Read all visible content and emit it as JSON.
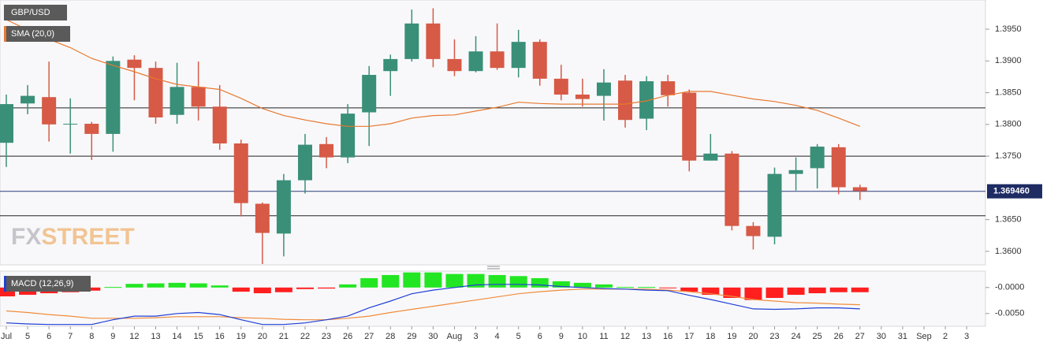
{
  "chart_data": [
    {
      "type": "candlestick",
      "title": "GBP/USD",
      "categories": [
        "Jul",
        "5",
        "6",
        "7",
        "8",
        "9",
        "12",
        "13",
        "14",
        "15",
        "16",
        "19",
        "20",
        "21",
        "22",
        "23",
        "26",
        "27",
        "28",
        "29",
        "30",
        "Aug",
        "3",
        "4",
        "5",
        "6",
        "9",
        "10",
        "11",
        "12",
        "13",
        "16",
        "17",
        "18",
        "19",
        "20",
        "23",
        "24",
        "25",
        "26",
        "27",
        "30",
        "31",
        "Sep",
        "2",
        "3"
      ],
      "open": [
        1.3771,
        1.3833,
        1.3843,
        1.38,
        1.3801,
        1.3785,
        1.3902,
        1.3889,
        1.3815,
        1.3859,
        1.3828,
        1.377,
        1.3675,
        1.3628,
        1.3712,
        1.3769,
        1.3748,
        1.3819,
        1.3884,
        1.3903,
        1.3959,
        1.3903,
        1.3884,
        1.3915,
        1.3889,
        1.393,
        1.3872,
        1.3847,
        1.3845,
        1.3869,
        1.3809,
        1.3868,
        1.385,
        1.3743,
        1.3754,
        1.364,
        1.3623,
        1.3722,
        1.3731,
        1.3764,
        1.3701,
        null,
        null,
        null,
        null,
        null
      ],
      "high": [
        1.3847,
        1.3862,
        1.3899,
        1.3841,
        1.3804,
        1.3907,
        1.3909,
        1.3899,
        1.3897,
        1.3899,
        1.3862,
        1.3776,
        1.3677,
        1.3722,
        1.3785,
        1.378,
        1.3832,
        1.3892,
        1.391,
        1.3981,
        1.3983,
        1.3934,
        1.3939,
        1.3959,
        1.3949,
        1.3934,
        1.3894,
        1.3872,
        1.3887,
        1.3878,
        1.3876,
        1.3878,
        1.3855,
        1.3785,
        1.3758,
        1.3646,
        1.3732,
        1.3748,
        1.3769,
        1.3769,
        1.3705,
        null,
        null,
        null,
        null,
        null
      ],
      "low": [
        1.3733,
        1.3816,
        1.3773,
        1.3754,
        1.3744,
        1.3757,
        1.3838,
        1.3801,
        1.3801,
        1.3806,
        1.376,
        1.3655,
        1.358,
        1.3592,
        1.3691,
        1.3731,
        1.3739,
        1.3766,
        1.3845,
        1.3899,
        1.389,
        1.3876,
        1.3882,
        1.3886,
        1.3874,
        1.3861,
        1.3838,
        1.3828,
        1.3806,
        1.3795,
        1.3791,
        1.3828,
        1.3726,
        1.3743,
        1.3633,
        1.3603,
        1.3611,
        1.3696,
        1.3699,
        1.369,
        1.3681,
        null,
        null,
        null,
        null,
        null
      ],
      "close": [
        1.3832,
        1.3845,
        1.38,
        1.3801,
        1.3785,
        1.39,
        1.3889,
        1.3811,
        1.3859,
        1.3828,
        1.377,
        1.3676,
        1.3629,
        1.3712,
        1.3768,
        1.3748,
        1.3817,
        1.3878,
        1.3903,
        1.3959,
        1.3903,
        1.3884,
        1.3915,
        1.3889,
        1.393,
        1.3872,
        1.3847,
        1.384,
        1.3866,
        1.3807,
        1.3868,
        1.3846,
        1.3743,
        1.3754,
        1.364,
        1.3624,
        1.3722,
        1.3728,
        1.3765,
        1.3701,
        1.3695,
        null,
        null,
        null,
        null,
        null
      ],
      "up_color": "#3a8f78",
      "down_color": "#d65a46",
      "sma": {
        "name": "SMA (20,0)",
        "color": "#e8782f",
        "values": [
          1.3965,
          1.3949,
          1.3934,
          1.3921,
          1.3904,
          1.3893,
          1.3883,
          1.3872,
          1.3863,
          1.3859,
          1.3855,
          1.3841,
          1.3825,
          1.3814,
          1.3807,
          1.3801,
          1.3797,
          1.3797,
          1.3801,
          1.381,
          1.3814,
          1.3815,
          1.3821,
          1.3827,
          1.3835,
          1.3833,
          1.3832,
          1.3832,
          1.3832,
          1.3832,
          1.3837,
          1.3846,
          1.3852,
          1.3852,
          1.3846,
          1.384,
          1.3836,
          1.383,
          1.3822,
          1.381,
          1.3797,
          null,
          null,
          null,
          null,
          null
        ]
      },
      "levels": [
        1.3826,
        1.375,
        1.3656
      ],
      "last_price": {
        "value": 1.36946,
        "label": "1.369460"
      },
      "watermark": [
        "FX",
        "STREET"
      ],
      "ylim": [
        1.358,
        1.3996
      ],
      "yticks": [
        {
          "value": 1.36,
          "label": "1.3600"
        },
        {
          "value": 1.365,
          "label": "1.3650"
        },
        {
          "value": 1.375,
          "label": "1.3750"
        },
        {
          "value": 1.38,
          "label": "1.3800"
        },
        {
          "value": 1.385,
          "label": "1.3850"
        },
        {
          "value": 1.39,
          "label": "1.3900"
        },
        {
          "value": 1.395,
          "label": "1.3950"
        }
      ]
    },
    {
      "type": "macd",
      "title": "MACD (12,26,9)",
      "histogram": [
        -0.0017,
        -0.0014,
        -0.0011,
        -0.0009,
        -0.0006,
        0.0001,
        0.0007,
        0.0008,
        0.0009,
        0.0008,
        0.0004,
        -0.0008,
        -0.0011,
        -0.0009,
        -0.0003,
        -0.0002,
        0.0006,
        0.0018,
        0.0024,
        0.0029,
        0.0029,
        0.0026,
        0.0026,
        0.0024,
        0.0022,
        0.0018,
        0.0012,
        0.0009,
        0.0006,
        0.0001,
        0.0001,
        -0.0001,
        -0.0008,
        -0.0014,
        -0.002,
        -0.0024,
        -0.002,
        -0.0014,
        -0.0011,
        -0.0009,
        -0.0009,
        null,
        null,
        null,
        null,
        null
      ],
      "hist_up_color": "#22e622",
      "hist_down_color": "#ff1f1f",
      "macd": {
        "color": "#1f3fd6",
        "values": [
          -0.0068,
          -0.007,
          -0.0071,
          -0.0071,
          -0.0071,
          -0.0062,
          -0.0055,
          -0.0055,
          -0.005,
          -0.0048,
          -0.0052,
          -0.0062,
          -0.0071,
          -0.0071,
          -0.0068,
          -0.0062,
          -0.0055,
          -0.0039,
          -0.0026,
          -0.0012,
          -0.0005,
          0,
          0.0005,
          0.0006,
          0.0006,
          0.0005,
          0.0002,
          0,
          -0.0002,
          -0.0003,
          -0.0005,
          -0.0006,
          -0.0015,
          -0.0023,
          -0.0032,
          -0.0041,
          -0.0042,
          -0.0041,
          -0.0039,
          -0.0039,
          -0.0041,
          null,
          null,
          null,
          null,
          null
        ]
      },
      "signal": {
        "color": "#f08c3c",
        "values": [
          -0.0045,
          -0.0048,
          -0.0052,
          -0.0055,
          -0.0059,
          -0.0059,
          -0.0059,
          -0.0058,
          -0.0056,
          -0.0056,
          -0.0056,
          -0.0058,
          -0.0059,
          -0.0061,
          -0.0062,
          -0.0062,
          -0.0059,
          -0.0055,
          -0.0048,
          -0.0042,
          -0.0036,
          -0.003,
          -0.0024,
          -0.0018,
          -0.0012,
          -0.0008,
          -0.0005,
          -0.0003,
          -0.0003,
          -0.0003,
          -0.0003,
          -0.0005,
          -0.0008,
          -0.0012,
          -0.0017,
          -0.0023,
          -0.0026,
          -0.0029,
          -0.003,
          -0.0032,
          -0.0033,
          null,
          null,
          null,
          null,
          null
        ]
      },
      "ylim": [
        -0.0073,
        0.003
      ],
      "yticks": [
        {
          "value": -0.005,
          "label": "-0.0050"
        },
        {
          "value": 0,
          "label": "-0.0000"
        }
      ]
    }
  ]
}
